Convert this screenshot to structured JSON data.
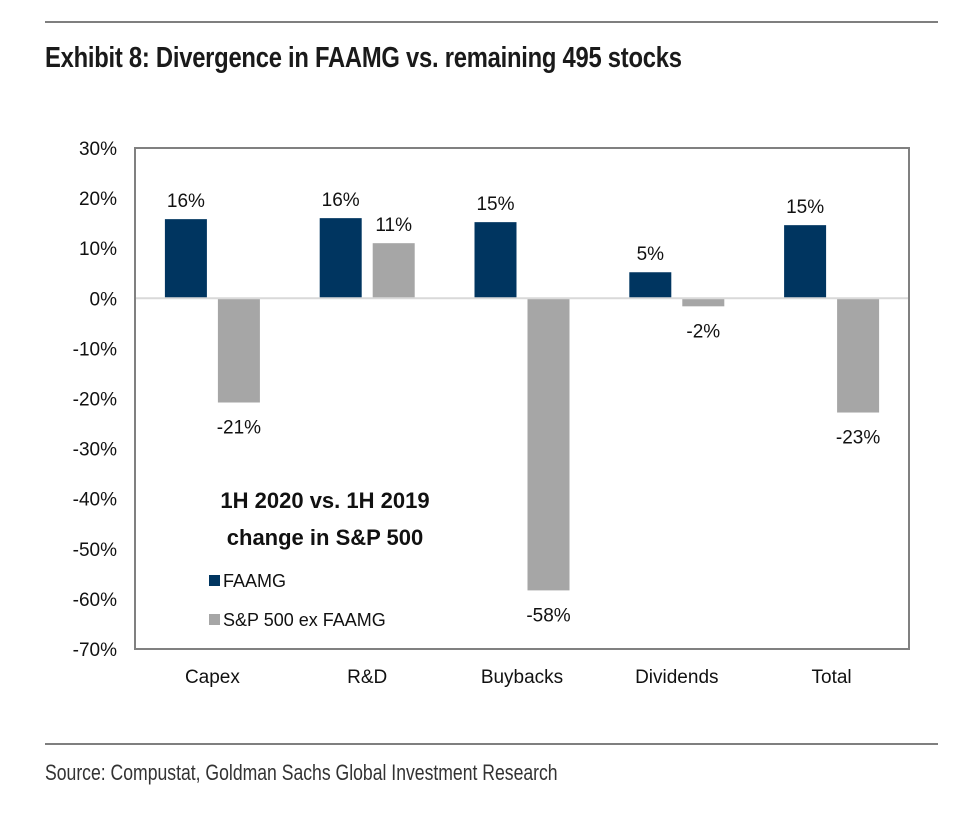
{
  "header": {
    "title": "Exhibit 8: Divergence in FAAMG vs. remaining 495 stocks"
  },
  "footer": {
    "source": "Source: Compustat, Goldman Sachs Global Investment Research"
  },
  "chart_data": {
    "type": "bar",
    "title": "Exhibit 8: Divergence in FAAMG vs. remaining 495 stocks",
    "xlabel": "",
    "ylabel": "",
    "categories": [
      "Capex",
      "R&D",
      "Buybacks",
      "Dividends",
      "Total"
    ],
    "series": [
      {
        "name": "FAAMG",
        "color": "#003560",
        "values": [
          15.8,
          16.0,
          15.2,
          5.2,
          14.6
        ],
        "labels": [
          "16%",
          "16%",
          "15%",
          "5%",
          "15%"
        ]
      },
      {
        "name": "S&P 500 ex FAAMG",
        "color": "#a6a6a6",
        "values": [
          -20.8,
          11.0,
          -58.3,
          -1.6,
          -22.8
        ],
        "labels": [
          "-21%",
          "11%",
          "-58%",
          "-2%",
          "-23%"
        ]
      }
    ],
    "ylim": [
      -70,
      30
    ],
    "yticks": [
      30,
      20,
      10,
      0,
      -10,
      -20,
      -30,
      -40,
      -50,
      -60,
      -70
    ],
    "ytick_labels": [
      "30%",
      "20%",
      "10%",
      "0%",
      "-10%",
      "-20%",
      "-30%",
      "-40%",
      "-50%",
      "-60%",
      "-70%"
    ],
    "grid": false,
    "annotation": [
      "1H 2020 vs. 1H 2019",
      "change in S&P 500"
    ],
    "legend": {
      "placement": "bottom-left inside plot",
      "entries": [
        "FAAMG",
        "S&P 500 ex FAAMG"
      ]
    }
  }
}
